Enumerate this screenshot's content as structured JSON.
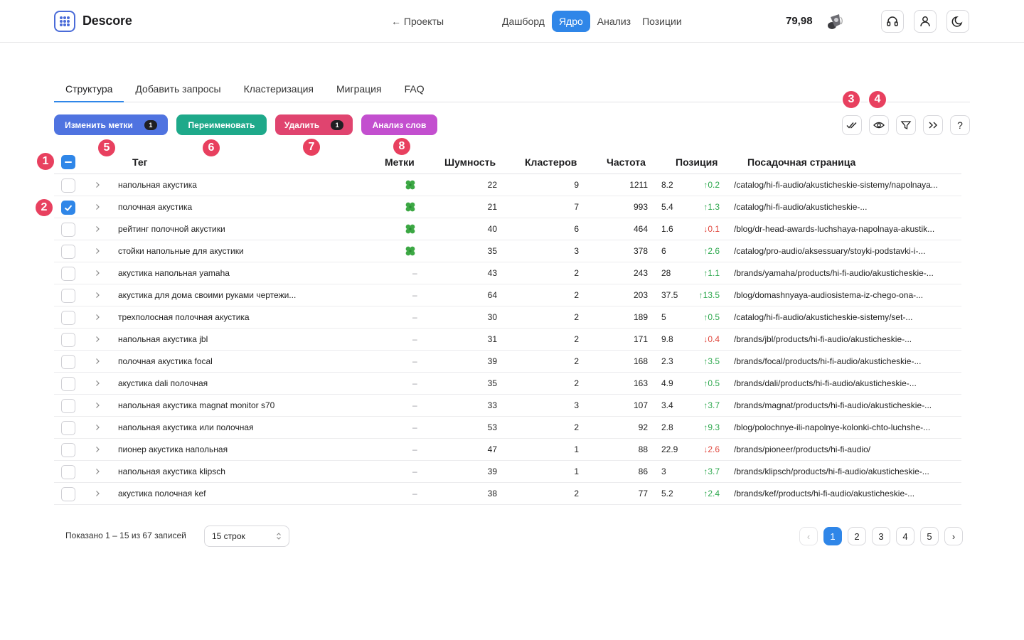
{
  "header": {
    "brand": "Descore",
    "back_link": "← Проекты",
    "nav": [
      {
        "label": "Дашборд",
        "active": false
      },
      {
        "label": "Ядро",
        "active": true
      },
      {
        "label": "Анализ",
        "active": false
      },
      {
        "label": "Позиции",
        "active": false
      }
    ],
    "balance": "79,98",
    "icons": [
      "speaker-icon",
      "headset-icon",
      "user-icon",
      "moon-icon"
    ]
  },
  "tabs": [
    {
      "label": "Структура",
      "active": true
    },
    {
      "label": "Добавить запросы",
      "active": false
    },
    {
      "label": "Кластеризация",
      "active": false
    },
    {
      "label": "Миграция",
      "active": false
    },
    {
      "label": "FAQ",
      "active": false
    }
  ],
  "actions": {
    "change_tags": {
      "label": "Изменить метки",
      "count": "1",
      "color": "#4f73e0"
    },
    "rename": {
      "label": "Переименовать",
      "color": "#1ea98a"
    },
    "delete": {
      "label": "Удалить",
      "count": "1",
      "color": "#e0446f"
    },
    "word_analysis": {
      "label": "Анализ слов",
      "color": "#c34fcf"
    }
  },
  "toolbar_icons": [
    "double-check-icon",
    "eye-icon",
    "filter-icon",
    "chevrons-right-icon",
    "help-icon"
  ],
  "toolbar_help": "?",
  "markers": [
    "1",
    "2",
    "3",
    "4",
    "5",
    "6",
    "7",
    "8"
  ],
  "table": {
    "columns": [
      "Тег",
      "Метки",
      "Шумность",
      "Кластеров",
      "Частота",
      "Позиция",
      "Посадочная страница"
    ],
    "rows": [
      {
        "tag": "напольная акустика",
        "label": "clover",
        "noise": "22",
        "clusters": "9",
        "freq": "1211",
        "pos": "8.2",
        "delta": "↑0.2",
        "dir": "up",
        "url": "/catalog/hi-fi-audio/akusticheskie-sistemy/napolnaya...",
        "checked": false
      },
      {
        "tag": "полочная акустика",
        "label": "clover",
        "noise": "21",
        "clusters": "7",
        "freq": "993",
        "pos": "5.4",
        "delta": "↑1.3",
        "dir": "up",
        "url": "/catalog/hi-fi-audio/akusticheskie-...",
        "checked": true
      },
      {
        "tag": "рейтинг полочной акустики",
        "label": "clover",
        "noise": "40",
        "clusters": "6",
        "freq": "464",
        "pos": "1.6",
        "delta": "↓0.1",
        "dir": "down",
        "url": "/blog/dr-head-awards-luchshaya-napolnaya-akustik...",
        "checked": false
      },
      {
        "tag": "стойки напольные для акустики",
        "label": "clover",
        "noise": "35",
        "clusters": "3",
        "freq": "378",
        "pos": "6",
        "delta": "↑2.6",
        "dir": "up",
        "url": "/catalog/pro-audio/aksessuary/stoyki-podstavki-i-...",
        "checked": false
      },
      {
        "tag": "акустика напольная yamaha",
        "label": "–",
        "noise": "43",
        "clusters": "2",
        "freq": "243",
        "pos": "28",
        "delta": "↑1.1",
        "dir": "up",
        "url": "/brands/yamaha/products/hi-fi-audio/akusticheskie-...",
        "checked": false
      },
      {
        "tag": "акустика для дома своими руками чертежи...",
        "label": "–",
        "noise": "64",
        "clusters": "2",
        "freq": "203",
        "pos": "37.5",
        "delta": "↑13.5",
        "dir": "up",
        "url": "/blog/domashnyaya-audiosistema-iz-chego-ona-...",
        "checked": false
      },
      {
        "tag": "трехполосная полочная акустика",
        "label": "–",
        "noise": "30",
        "clusters": "2",
        "freq": "189",
        "pos": "5",
        "delta": "↑0.5",
        "dir": "up",
        "url": "/catalog/hi-fi-audio/akusticheskie-sistemy/set-...",
        "checked": false
      },
      {
        "tag": "напольная акустика jbl",
        "label": "–",
        "noise": "31",
        "clusters": "2",
        "freq": "171",
        "pos": "9.8",
        "delta": "↓0.4",
        "dir": "down",
        "url": "/brands/jbl/products/hi-fi-audio/akusticheskie-...",
        "checked": false
      },
      {
        "tag": "полочная акустика focal",
        "label": "–",
        "noise": "39",
        "clusters": "2",
        "freq": "168",
        "pos": "2.3",
        "delta": "↑3.5",
        "dir": "up",
        "url": "/brands/focal/products/hi-fi-audio/akusticheskie-...",
        "checked": false
      },
      {
        "tag": "акустика dali полочная",
        "label": "–",
        "noise": "35",
        "clusters": "2",
        "freq": "163",
        "pos": "4.9",
        "delta": "↑0.5",
        "dir": "up",
        "url": "/brands/dali/products/hi-fi-audio/akusticheskie-...",
        "checked": false
      },
      {
        "tag": "напольная акустика magnat monitor s70",
        "label": "–",
        "noise": "33",
        "clusters": "3",
        "freq": "107",
        "pos": "3.4",
        "delta": "↑3.7",
        "dir": "up",
        "url": "/brands/magnat/products/hi-fi-audio/akusticheskie-...",
        "checked": false
      },
      {
        "tag": "напольная акустика или полочная",
        "label": "–",
        "noise": "53",
        "clusters": "2",
        "freq": "92",
        "pos": "2.8",
        "delta": "↑9.3",
        "dir": "up",
        "url": "/blog/polochnye-ili-napolnye-kolonki-chto-luchshe-...",
        "checked": false
      },
      {
        "tag": "пионер акустика напольная",
        "label": "–",
        "noise": "47",
        "clusters": "1",
        "freq": "88",
        "pos": "22.9",
        "delta": "↓2.6",
        "dir": "down",
        "url": "/brands/pioneer/products/hi-fi-audio/",
        "checked": false
      },
      {
        "tag": "напольная акустика klipsch",
        "label": "–",
        "noise": "39",
        "clusters": "1",
        "freq": "86",
        "pos": "3",
        "delta": "↑3.7",
        "dir": "up",
        "url": "/brands/klipsch/products/hi-fi-audio/akusticheskie-...",
        "checked": false
      },
      {
        "tag": "акустика полочная kef",
        "label": "–",
        "noise": "38",
        "clusters": "2",
        "freq": "77",
        "pos": "5.2",
        "delta": "↑2.4",
        "dir": "up",
        "url": "/brands/kef/products/hi-fi-audio/akusticheskie-...",
        "checked": false
      }
    ]
  },
  "footer": {
    "shown": "Показано 1 – 15 из 67 записей",
    "rows_select": "15 строк",
    "pages": [
      "1",
      "2",
      "3",
      "4",
      "5"
    ],
    "current_page": "1",
    "prev": "‹",
    "next": "›"
  },
  "colors": {
    "accent": "#2f86e8",
    "up": "#2fa84f",
    "down": "#e0483e",
    "marker": "#e8405f"
  }
}
